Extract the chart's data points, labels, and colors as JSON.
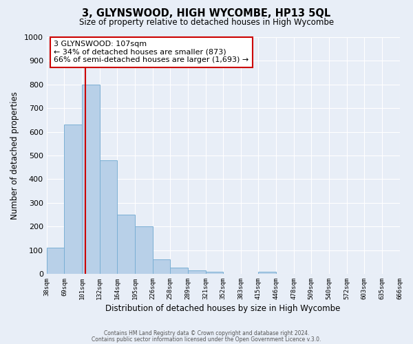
{
  "title": "3, GLYNSWOOD, HIGH WYCOMBE, HP13 5QL",
  "subtitle": "Size of property relative to detached houses in High Wycombe",
  "bar_values": [
    110,
    630,
    800,
    480,
    250,
    200,
    60,
    25,
    15,
    10,
    0,
    0,
    10,
    0,
    0,
    0,
    0,
    0,
    0,
    0
  ],
  "bin_labels": [
    "38sqm",
    "69sqm",
    "101sqm",
    "132sqm",
    "164sqm",
    "195sqm",
    "226sqm",
    "258sqm",
    "289sqm",
    "321sqm",
    "352sqm",
    "383sqm",
    "415sqm",
    "446sqm",
    "478sqm",
    "509sqm",
    "540sqm",
    "572sqm",
    "603sqm",
    "635sqm",
    "666sqm"
  ],
  "bar_color": "#b8d0e8",
  "bar_edge_color": "#7aafd4",
  "vline_color": "#cc0000",
  "annotation_title": "3 GLYNSWOOD: 107sqm",
  "annotation_line1": "← 34% of detached houses are smaller (873)",
  "annotation_line2": "66% of semi-detached houses are larger (1,693) →",
  "annotation_box_color": "#ffffff",
  "annotation_box_edge": "#cc0000",
  "xlabel": "Distribution of detached houses by size in High Wycombe",
  "ylabel": "Number of detached properties",
  "ylim": [
    0,
    1000
  ],
  "yticks": [
    0,
    100,
    200,
    300,
    400,
    500,
    600,
    700,
    800,
    900,
    1000
  ],
  "footer1": "Contains HM Land Registry data © Crown copyright and database right 2024.",
  "footer2": "Contains public sector information licensed under the Open Government Licence v.3.0.",
  "background_color": "#e8eef7",
  "plot_bg_color": "#e8eef7"
}
